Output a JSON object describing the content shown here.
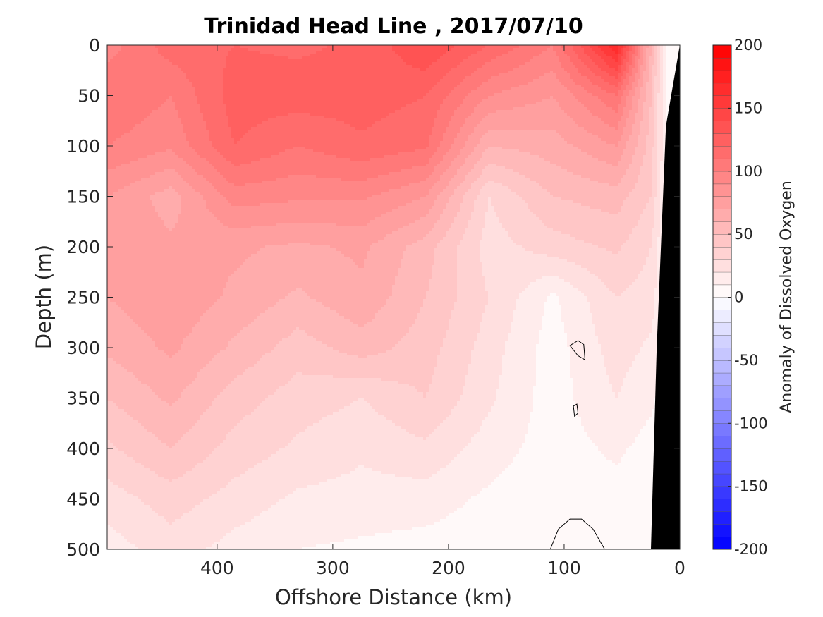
{
  "chart_data": {
    "type": "heatmap",
    "title": "Trinidad Head Line , 2017/07/10",
    "xlabel": "Offshore Distance (km)",
    "ylabel": "Depth (m)",
    "colorbar_label": "Anomaly of Dissolved Oxygen",
    "xlim": [
      495,
      0
    ],
    "ylim": [
      500,
      0
    ],
    "x_reversed": true,
    "y_reversed": true,
    "xticks": [
      400,
      300,
      200,
      100,
      0
    ],
    "yticks": [
      0,
      50,
      100,
      150,
      200,
      250,
      300,
      350,
      400,
      450,
      500
    ],
    "clim": [
      -200,
      200
    ],
    "colorbar_ticks": [
      200,
      150,
      100,
      50,
      0,
      -50,
      -100,
      -150,
      -200
    ],
    "colormap": {
      "low": "#0000ff",
      "mid": "#ffffff",
      "high": "#ff0000"
    },
    "levels_step": 10,
    "seafloor_color": "#000000",
    "profile_x": [
      495,
      440,
      385,
      330,
      275,
      220,
      165,
      110,
      55,
      25,
      10
    ],
    "depth_y": [
      0,
      50,
      100,
      150,
      200,
      250,
      300,
      350,
      400,
      450,
      500
    ],
    "values": [
      [
        95,
        115,
        120,
        118,
        122,
        140,
        120,
        100,
        170,
        60,
        5
      ],
      [
        110,
        100,
        125,
        125,
        125,
        120,
        90,
        80,
        110,
        50,
        5
      ],
      [
        100,
        92,
        120,
        110,
        118,
        112,
        60,
        65,
        80,
        45,
        5
      ],
      [
        80,
        65,
        95,
        92,
        92,
        80,
        30,
        50,
        55,
        40,
        5
      ],
      [
        80,
        72,
        72,
        68,
        72,
        55,
        25,
        35,
        42,
        30,
        5
      ],
      [
        70,
        78,
        68,
        58,
        68,
        50,
        30,
        8,
        30,
        25,
        5
      ],
      [
        62,
        72,
        58,
        45,
        55,
        45,
        25,
        5,
        25,
        18,
        5
      ],
      [
        50,
        62,
        45,
        35,
        30,
        40,
        22,
        5,
        20,
        12,
        5
      ],
      [
        38,
        50,
        36,
        28,
        22,
        28,
        15,
        5,
        12,
        6,
        5
      ],
      [
        25,
        35,
        26,
        18,
        16,
        15,
        8,
        3,
        6,
        3,
        5
      ],
      [
        15,
        25,
        16,
        10,
        8,
        6,
        3,
        2,
        3,
        2,
        5
      ]
    ],
    "zero_contours": [
      [
        [
          95,
          298
        ],
        [
          88,
          293
        ],
        [
          83,
          297
        ],
        [
          82,
          312
        ],
        [
          88,
          308
        ]
      ],
      [
        [
          92,
          358
        ],
        [
          89,
          356
        ],
        [
          88,
          365
        ],
        [
          91,
          368
        ]
      ],
      [
        [
          112,
          500
        ],
        [
          105,
          480
        ],
        [
          95,
          470
        ],
        [
          85,
          470
        ],
        [
          75,
          480
        ],
        [
          65,
          500
        ]
      ]
    ]
  }
}
